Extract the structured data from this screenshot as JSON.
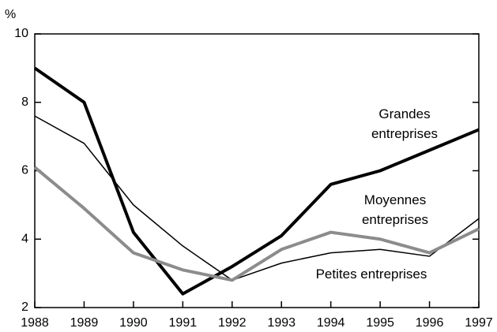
{
  "chart_data": {
    "type": "line",
    "y_label": "%",
    "x": [
      1988,
      1989,
      1990,
      1991,
      1992,
      1993,
      1994,
      1995,
      1996,
      1997
    ],
    "xlim": [
      1988,
      1997
    ],
    "xticks": [
      1988,
      1989,
      1990,
      1991,
      1992,
      1993,
      1994,
      1995,
      1996,
      1997
    ],
    "ylim": [
      2,
      10
    ],
    "yticks": [
      2,
      4,
      6,
      8,
      10
    ],
    "series": [
      {
        "name": "Grandes entreprises",
        "color": "#000000",
        "values": [
          9.0,
          8.0,
          4.2,
          2.4,
          3.2,
          4.1,
          5.6,
          6.0,
          6.6,
          7.2
        ]
      },
      {
        "name": "Petites entreprises",
        "color": "#000000",
        "values": [
          7.6,
          6.8,
          5.0,
          3.8,
          2.8,
          3.3,
          3.6,
          3.7,
          3.5,
          4.6
        ]
      },
      {
        "name": "Moyennes entreprises",
        "color": "#8c8c8c",
        "values": [
          6.1,
          4.9,
          3.6,
          3.1,
          2.8,
          3.7,
          4.2,
          4.0,
          3.6,
          4.3
        ]
      }
    ]
  }
}
